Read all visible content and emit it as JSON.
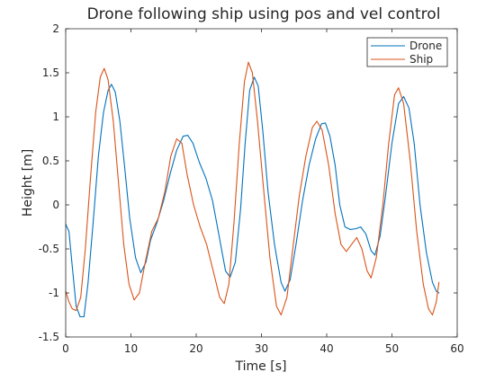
{
  "chart_data": {
    "type": "line",
    "title": "Drone following ship using pos and vel control",
    "xlabel": "Time [s]",
    "ylabel": "Height [m]",
    "xlim": [
      0,
      60
    ],
    "ylim": [
      -1.5,
      2
    ],
    "xticks": [
      0,
      10,
      20,
      30,
      40,
      50,
      60
    ],
    "xtick_labels": [
      "0",
      "10",
      "20",
      "30",
      "40",
      "50",
      "60"
    ],
    "yticks": [
      -1.5,
      -1,
      -0.5,
      0,
      0.5,
      1,
      1.5,
      2
    ],
    "ytick_labels": [
      "-1.5",
      "-1",
      "-0.5",
      "0",
      "0.5",
      "1",
      "1.5",
      "2"
    ],
    "grid": false,
    "legend_position": "top-right",
    "series": [
      {
        "name": "Drone",
        "color": "#0072BD",
        "points": [
          [
            0,
            -0.22
          ],
          [
            0.5,
            -0.3
          ],
          [
            1,
            -0.7
          ],
          [
            1.6,
            -1.15
          ],
          [
            2.2,
            -1.27
          ],
          [
            2.8,
            -1.27
          ],
          [
            3.4,
            -0.9
          ],
          [
            4.2,
            -0.2
          ],
          [
            5.0,
            0.55
          ],
          [
            5.8,
            1.05
          ],
          [
            6.5,
            1.3
          ],
          [
            7.0,
            1.37
          ],
          [
            7.6,
            1.28
          ],
          [
            8.3,
            0.95
          ],
          [
            9.0,
            0.45
          ],
          [
            9.8,
            -0.15
          ],
          [
            10.7,
            -0.6
          ],
          [
            11.5,
            -0.77
          ],
          [
            12.3,
            -0.65
          ],
          [
            13.0,
            -0.4
          ],
          [
            14.0,
            -0.2
          ],
          [
            15.0,
            0.05
          ],
          [
            16.0,
            0.35
          ],
          [
            17.0,
            0.62
          ],
          [
            18.0,
            0.78
          ],
          [
            18.7,
            0.79
          ],
          [
            19.5,
            0.7
          ],
          [
            20.5,
            0.48
          ],
          [
            21.5,
            0.3
          ],
          [
            22.5,
            0.05
          ],
          [
            23.5,
            -0.35
          ],
          [
            24.5,
            -0.75
          ],
          [
            25.2,
            -0.82
          ],
          [
            26.0,
            -0.65
          ],
          [
            26.8,
            -0.05
          ],
          [
            27.5,
            0.7
          ],
          [
            28.2,
            1.3
          ],
          [
            28.9,
            1.45
          ],
          [
            29.5,
            1.35
          ],
          [
            30.2,
            0.85
          ],
          [
            31.0,
            0.15
          ],
          [
            32.0,
            -0.45
          ],
          [
            33.0,
            -0.88
          ],
          [
            33.6,
            -0.98
          ],
          [
            34.4,
            -0.85
          ],
          [
            35.3,
            -0.45
          ],
          [
            36.3,
            0.05
          ],
          [
            37.3,
            0.45
          ],
          [
            38.3,
            0.75
          ],
          [
            39.2,
            0.92
          ],
          [
            39.8,
            0.93
          ],
          [
            40.5,
            0.78
          ],
          [
            41.3,
            0.45
          ],
          [
            42.0,
            0.0
          ],
          [
            42.8,
            -0.25
          ],
          [
            43.6,
            -0.28
          ],
          [
            44.5,
            -0.27
          ],
          [
            45.2,
            -0.25
          ],
          [
            46.0,
            -0.33
          ],
          [
            46.8,
            -0.52
          ],
          [
            47.4,
            -0.57
          ],
          [
            48.2,
            -0.35
          ],
          [
            49.0,
            0.1
          ],
          [
            50.0,
            0.7
          ],
          [
            51.0,
            1.15
          ],
          [
            51.8,
            1.23
          ],
          [
            52.6,
            1.1
          ],
          [
            53.4,
            0.7
          ],
          [
            54.3,
            0.0
          ],
          [
            55.3,
            -0.55
          ],
          [
            56.2,
            -0.88
          ],
          [
            56.8,
            -0.98
          ],
          [
            57.2,
            -1.0
          ]
        ]
      },
      {
        "name": "Ship",
        "color": "#D95319",
        "points": [
          [
            0,
            -0.98
          ],
          [
            0.5,
            -1.1
          ],
          [
            1.0,
            -1.18
          ],
          [
            1.6,
            -1.2
          ],
          [
            2.3,
            -1.05
          ],
          [
            3.0,
            -0.5
          ],
          [
            3.8,
            0.3
          ],
          [
            4.6,
            1.05
          ],
          [
            5.3,
            1.45
          ],
          [
            5.9,
            1.55
          ],
          [
            6.5,
            1.42
          ],
          [
            7.3,
            0.95
          ],
          [
            8.1,
            0.25
          ],
          [
            8.9,
            -0.45
          ],
          [
            9.7,
            -0.9
          ],
          [
            10.5,
            -1.08
          ],
          [
            11.3,
            -1.0
          ],
          [
            12.2,
            -0.65
          ],
          [
            13.2,
            -0.3
          ],
          [
            14.2,
            -0.15
          ],
          [
            15.2,
            0.15
          ],
          [
            16.1,
            0.55
          ],
          [
            17.0,
            0.75
          ],
          [
            17.8,
            0.7
          ],
          [
            18.6,
            0.35
          ],
          [
            19.6,
            0.0
          ],
          [
            20.6,
            -0.25
          ],
          [
            21.6,
            -0.45
          ],
          [
            22.6,
            -0.75
          ],
          [
            23.6,
            -1.05
          ],
          [
            24.3,
            -1.12
          ],
          [
            25.0,
            -0.9
          ],
          [
            25.8,
            -0.2
          ],
          [
            26.6,
            0.7
          ],
          [
            27.4,
            1.4
          ],
          [
            28.0,
            1.62
          ],
          [
            28.6,
            1.5
          ],
          [
            29.4,
            0.95
          ],
          [
            30.3,
            0.2
          ],
          [
            31.3,
            -0.6
          ],
          [
            32.3,
            -1.15
          ],
          [
            33.0,
            -1.25
          ],
          [
            33.9,
            -1.05
          ],
          [
            34.8,
            -0.5
          ],
          [
            35.8,
            0.1
          ],
          [
            36.8,
            0.55
          ],
          [
            37.8,
            0.88
          ],
          [
            38.5,
            0.95
          ],
          [
            39.3,
            0.85
          ],
          [
            40.3,
            0.45
          ],
          [
            41.3,
            -0.1
          ],
          [
            42.2,
            -0.45
          ],
          [
            43.0,
            -0.53
          ],
          [
            43.8,
            -0.45
          ],
          [
            44.6,
            -0.37
          ],
          [
            45.4,
            -0.5
          ],
          [
            46.2,
            -0.75
          ],
          [
            46.8,
            -0.83
          ],
          [
            47.6,
            -0.6
          ],
          [
            48.6,
            0.0
          ],
          [
            49.5,
            0.7
          ],
          [
            50.4,
            1.25
          ],
          [
            51.0,
            1.33
          ],
          [
            51.8,
            1.15
          ],
          [
            52.8,
            0.5
          ],
          [
            53.8,
            -0.3
          ],
          [
            54.8,
            -0.9
          ],
          [
            55.6,
            -1.18
          ],
          [
            56.2,
            -1.25
          ],
          [
            56.8,
            -1.1
          ],
          [
            57.2,
            -0.88
          ]
        ]
      }
    ]
  }
}
